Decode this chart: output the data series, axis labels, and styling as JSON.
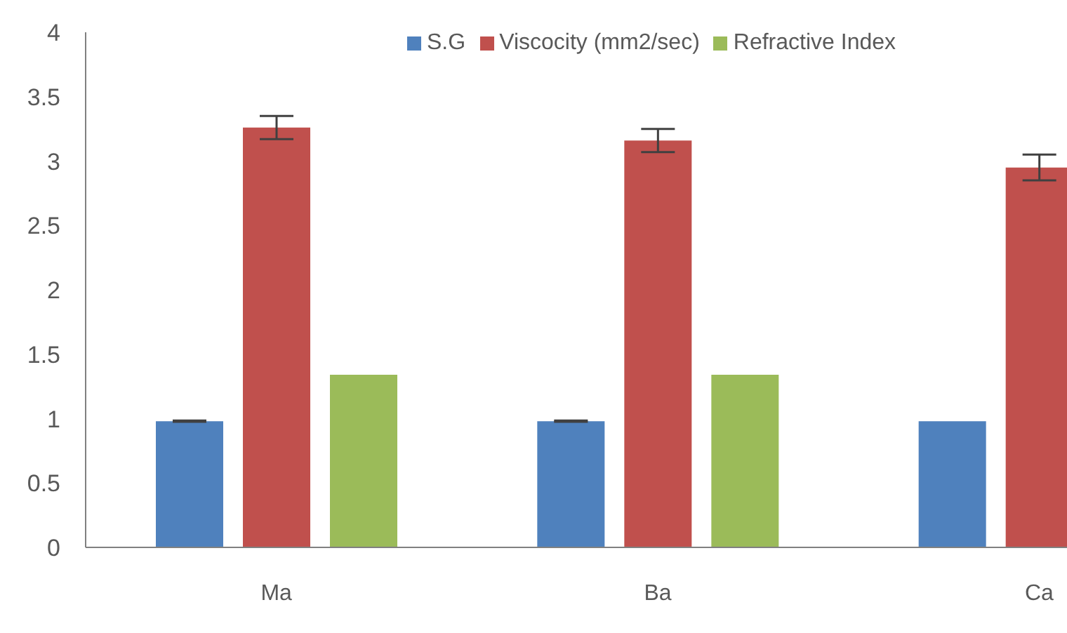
{
  "chart_data": {
    "type": "bar",
    "categories": [
      "Ma",
      "Ba",
      "Ca"
    ],
    "series": [
      {
        "name": "S.G",
        "color": "#4f81bd",
        "values": [
          0.98,
          0.98,
          0.98
        ],
        "errors": [
          0.005,
          0.005,
          null
        ]
      },
      {
        "name": "Viscocity (mm2/sec)",
        "color": "#c0504d",
        "values": [
          3.26,
          3.16,
          2.95
        ],
        "errors": [
          0.09,
          0.09,
          0.1
        ]
      },
      {
        "name": "Refractive Index",
        "color": "#9bbb59",
        "values": [
          1.34,
          1.34,
          null
        ]
      }
    ],
    "ylim": [
      0,
      4
    ],
    "yticks": [
      0,
      0.5,
      1,
      1.5,
      2,
      2.5,
      3,
      3.5,
      4
    ],
    "grid": false,
    "legend": "top right"
  }
}
